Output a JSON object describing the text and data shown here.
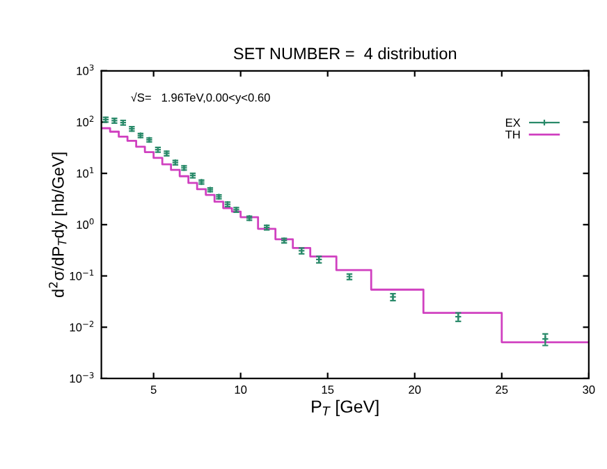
{
  "chart_data": {
    "type": "scatter",
    "title": "SET NUMBER =  4 distribution",
    "xlabel": "P$_{T}$ [GeV]",
    "ylabel": "d$^{2}$σ/dP$_{T}$dy [nb/GeV]",
    "annotations": [
      "√S=   1.96TeV,0.00<y<0.60"
    ],
    "log": "y",
    "xlim": [
      2,
      30
    ],
    "xticks": [
      5,
      10,
      15,
      20,
      25,
      30
    ],
    "ylim": [
      0.001,
      1000
    ],
    "yticks": [
      {
        "value": 0.001,
        "label": "10$^{−3}$"
      },
      {
        "value": 0.01,
        "label": "10$^{−2}$"
      },
      {
        "value": 0.1,
        "label": "10$^{−1}$"
      },
      {
        "value": 1,
        "label": "10$^{0}$"
      },
      {
        "value": 10,
        "label": "10$^{1}$"
      },
      {
        "value": 100,
        "label": "10$^{2}$"
      },
      {
        "value": 1000,
        "label": "10$^{3}$"
      }
    ],
    "legend": "top right",
    "grid": false,
    "series": [
      {
        "name": "EX",
        "color": "#2a8a6a",
        "marker": "cross",
        "x": [
          2.25,
          2.75,
          3.25,
          3.75,
          4.25,
          4.75,
          5.25,
          5.75,
          6.25,
          6.75,
          7.25,
          7.75,
          8.25,
          8.75,
          9.25,
          9.75,
          10.5,
          11.5,
          12.5,
          13.5,
          14.5,
          16.25,
          18.75,
          22.5,
          27.5
        ],
        "values": [
          112,
          107,
          98,
          74,
          55,
          45,
          29,
          24.5,
          16.3,
          12.8,
          9.1,
          6.8,
          4.8,
          3.5,
          2.5,
          1.95,
          1.34,
          0.88,
          0.49,
          0.31,
          0.21,
          0.097,
          0.039,
          0.016,
          0.0059
        ],
        "errors": [
          12,
          11,
          10,
          7,
          5,
          4,
          3,
          2.5,
          1.6,
          1.2,
          0.9,
          0.6,
          0.4,
          0.3,
          0.25,
          0.2,
          0.12,
          0.09,
          0.05,
          0.04,
          0.03,
          0.012,
          0.006,
          0.003,
          0.0015
        ]
      },
      {
        "name": "TH",
        "type": "step",
        "color": "#d040c0",
        "x": [
          2,
          2.5,
          3,
          3.5,
          4,
          4.5,
          5,
          5.5,
          6,
          6.5,
          7,
          7.5,
          8,
          8.5,
          9,
          9.5,
          10,
          11,
          12,
          13,
          14,
          15.5,
          17.5,
          20.5,
          25,
          30
        ],
        "values": [
          76,
          65,
          52,
          43,
          33,
          26,
          20,
          15,
          11.7,
          8.8,
          6.5,
          4.9,
          3.8,
          2.8,
          2.1,
          1.8,
          1.4,
          0.83,
          0.52,
          0.35,
          0.24,
          0.13,
          0.054,
          0.019,
          0.0051,
          0.0051
        ]
      }
    ]
  }
}
